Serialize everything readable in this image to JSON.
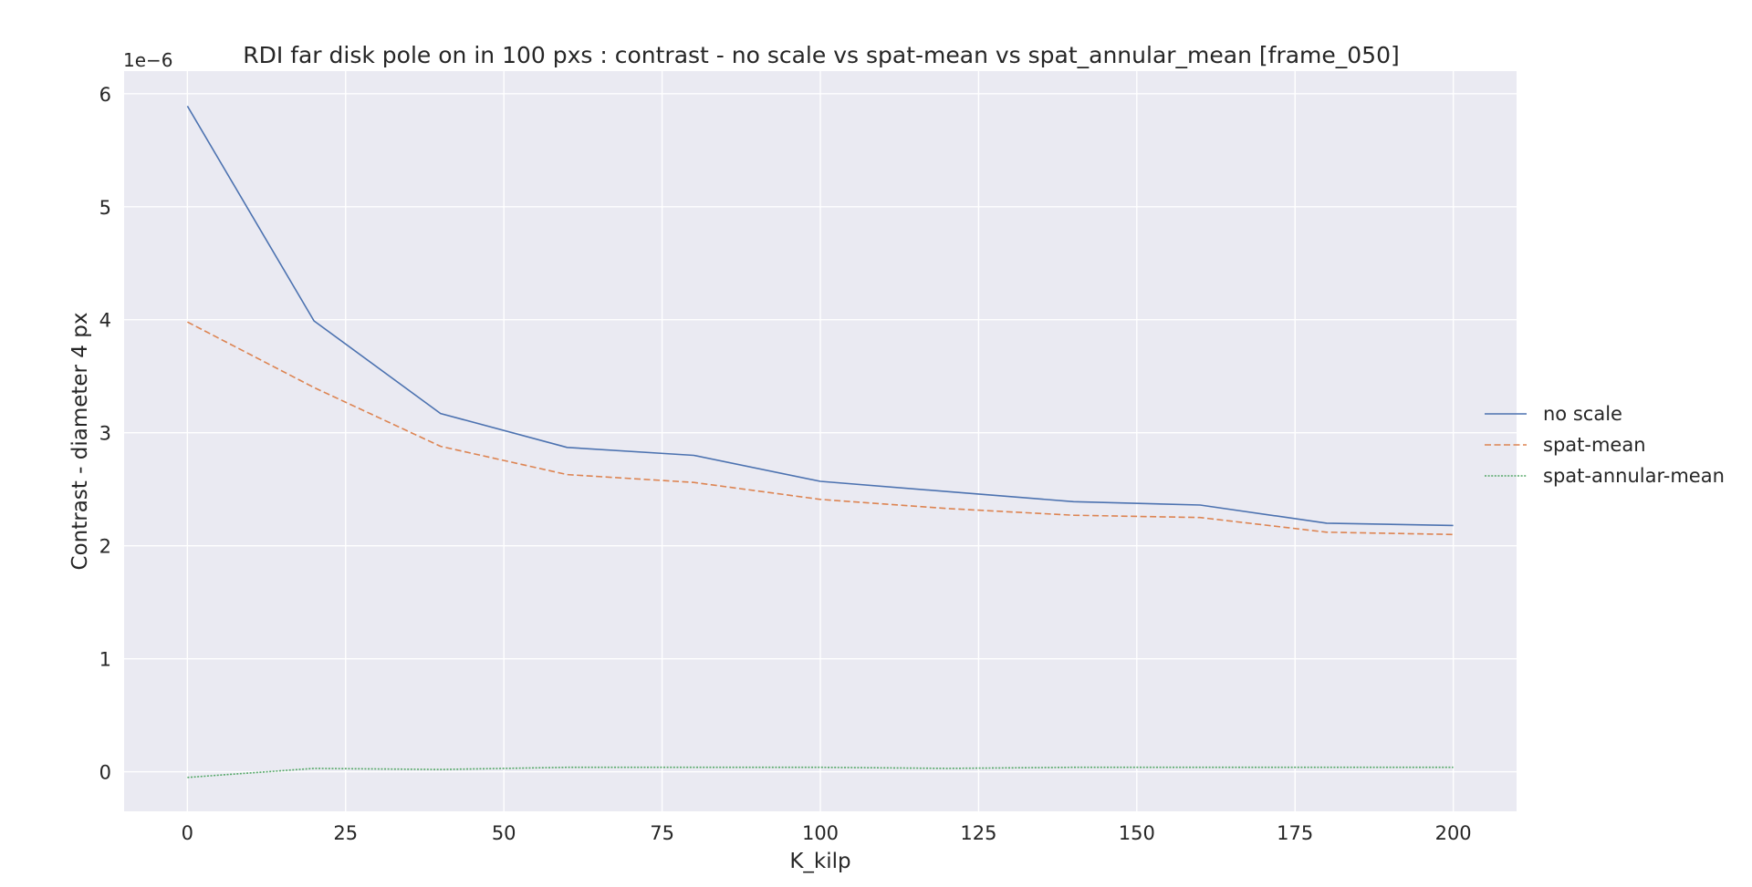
{
  "chart_data": {
    "type": "line",
    "title": "RDI far disk pole on in 100 pxs : contrast - no scale vs spat-mean vs spat_annular_mean [frame_050]",
    "xlabel": "K_kilp",
    "ylabel": "Contrast - diameter 4 px",
    "y_offset_label": "1e−6",
    "y_unit_multiplier": 1e-06,
    "xlim": [
      -10,
      210
    ],
    "ylim": [
      -0.35,
      6.2
    ],
    "xticks": [
      0,
      25,
      50,
      75,
      100,
      125,
      150,
      175,
      200
    ],
    "yticks": [
      0,
      1,
      2,
      3,
      4,
      5,
      6
    ],
    "grid": true,
    "legend_position": "right",
    "x": [
      0,
      20,
      40,
      60,
      80,
      100,
      120,
      140,
      160,
      180,
      200
    ],
    "series": [
      {
        "name": "no scale",
        "color": "#4c72b0",
        "dash": "solid",
        "values": [
          5.89,
          3.99,
          3.17,
          2.87,
          2.8,
          2.57,
          2.48,
          2.39,
          2.36,
          2.2,
          2.18
        ]
      },
      {
        "name": "spat-mean",
        "color": "#dd8452",
        "dash": "dashed",
        "values": [
          3.98,
          3.4,
          2.88,
          2.63,
          2.56,
          2.41,
          2.33,
          2.27,
          2.25,
          2.12,
          2.1
        ]
      },
      {
        "name": "spat-annular-mean",
        "color": "#55a868",
        "dash": "dotted",
        "values": [
          -0.05,
          0.03,
          0.02,
          0.04,
          0.04,
          0.04,
          0.03,
          0.04,
          0.04,
          0.04,
          0.04
        ]
      }
    ]
  }
}
